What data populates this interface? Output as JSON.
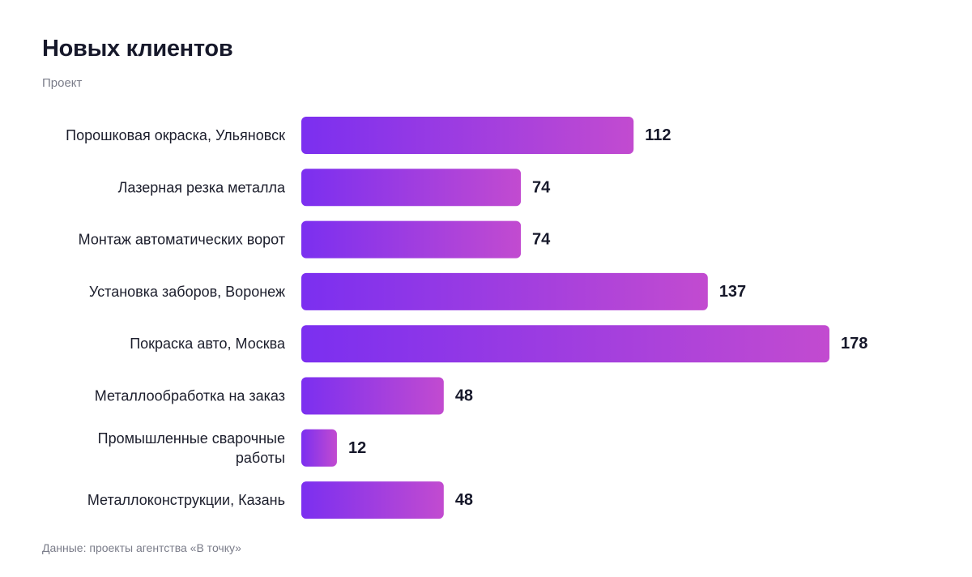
{
  "title": "Новых клиентов",
  "subtitle": "Проект",
  "footer": "Данные: проекты агентства «В точку»",
  "colors": {
    "bar_start": "#7b2ff0",
    "bar_end": "#c24bd0",
    "text": "#1c1e2c",
    "muted": "#7a7c89"
  },
  "chart_data": {
    "type": "bar",
    "orientation": "horizontal",
    "title": "Новых клиентов",
    "subtitle": "Проект",
    "grid": false,
    "categories": [
      "Порошковая окраска, Ульяновск",
      "Лазерная резка металла",
      "Монтаж автоматических ворот",
      "Установка заборов, Воронеж",
      "Покраска авто, Москва",
      "Металлообработка на заказ",
      "Промышленные сварочные работы",
      "Металлоконструкции, Казань"
    ],
    "category_lines": [
      [
        "Порошковая окраска, Ульяновск"
      ],
      [
        "Лазерная резка металла"
      ],
      [
        "Монтаж автоматических ворот"
      ],
      [
        "Установка заборов, Воронеж"
      ],
      [
        "Покраска авто, Москва"
      ],
      [
        "Металлообработка на заказ"
      ],
      [
        "Промышленные сварочные",
        "работы"
      ],
      [
        "Металлоконструкции, Казань"
      ]
    ],
    "values": [
      112,
      74,
      74,
      137,
      178,
      48,
      12,
      48
    ],
    "xlim": [
      0,
      178
    ]
  }
}
